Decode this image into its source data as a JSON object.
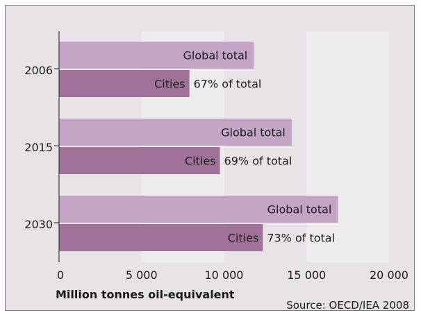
{
  "chart_data": {
    "type": "bar",
    "categories": [
      "2006",
      "2015",
      "2030"
    ],
    "series": [
      {
        "name": "Global total",
        "values": [
          11800,
          14100,
          16900
        ],
        "color": "#c4a5c6"
      },
      {
        "name": "Cities",
        "values": [
          7900,
          9750,
          12350
        ],
        "color": "#a07199"
      }
    ],
    "annotations": [
      "67% of total",
      "69% of total",
      "73% of total"
    ],
    "xlim": [
      0,
      20000
    ],
    "xticks": [
      0,
      5000,
      10000,
      15000,
      20000
    ],
    "xtick_labels": [
      "0",
      "5 000",
      "10 000",
      "15 000",
      "20 000"
    ],
    "xlabel": "Million tonnes oil-equivalent",
    "source": "Source: OECD/IEA 2008",
    "background_color": "#e8e3e6",
    "band_color": "#efecee",
    "grid": false
  }
}
